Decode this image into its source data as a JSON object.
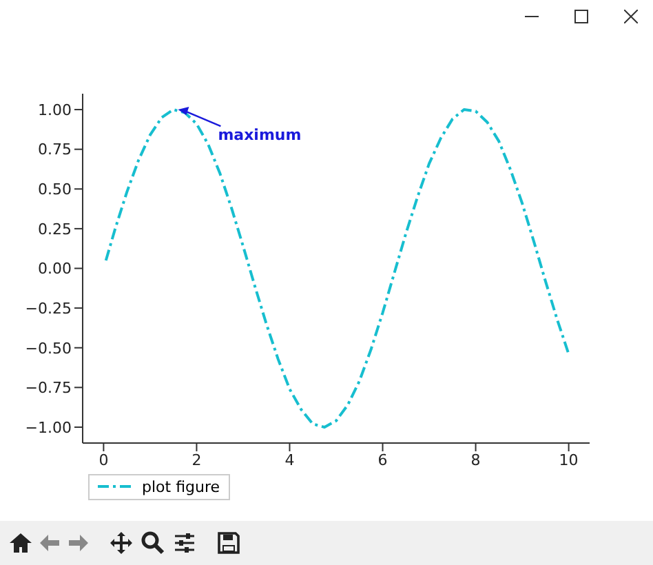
{
  "chart_data": {
    "type": "line",
    "x": [
      0.05,
      0.25,
      0.5,
      0.75,
      1.0,
      1.25,
      1.5,
      1.75,
      2.0,
      2.25,
      2.5,
      2.75,
      3.0,
      3.25,
      3.5,
      3.75,
      4.0,
      4.25,
      4.5,
      4.75,
      5.0,
      5.25,
      5.5,
      5.75,
      6.0,
      6.25,
      6.5,
      6.75,
      7.0,
      7.25,
      7.5,
      7.75,
      8.0,
      8.25,
      8.5,
      8.75,
      9.0,
      9.25,
      9.5,
      9.75,
      10.0
    ],
    "series": [
      {
        "name": "plot figure",
        "color": "#17becf",
        "values": [
          0.05,
          0.25,
          0.48,
          0.68,
          0.84,
          0.95,
          1.0,
          0.98,
          0.91,
          0.78,
          0.6,
          0.38,
          0.14,
          -0.11,
          -0.35,
          -0.57,
          -0.76,
          -0.89,
          -0.98,
          -1.0,
          -0.96,
          -0.86,
          -0.71,
          -0.51,
          -0.28,
          -0.03,
          0.22,
          0.45,
          0.66,
          0.82,
          0.94,
          1.0,
          0.99,
          0.92,
          0.8,
          0.62,
          0.41,
          0.17,
          -0.08,
          -0.32,
          -0.54
        ]
      }
    ],
    "xlim": [
      -0.45,
      10.45
    ],
    "xticks": [
      0,
      2,
      4,
      6,
      8,
      10
    ],
    "ylim": [
      -1.1,
      1.1
    ],
    "yticks": [
      {
        "value": -1,
        "label": "−1.00"
      },
      {
        "value": -0.75,
        "label": "−0.75"
      },
      {
        "value": -0.5,
        "label": "−0.50"
      },
      {
        "value": -0.25,
        "label": "−0.25"
      },
      {
        "value": 0,
        "label": "0.00"
      },
      {
        "value": 0.25,
        "label": "0.25"
      },
      {
        "value": 0.5,
        "label": "0.50"
      },
      {
        "value": 0.75,
        "label": "0.75"
      },
      {
        "value": 1,
        "label": "1.00"
      }
    ],
    "annotations": [
      {
        "text": "maximum",
        "x": 1.57,
        "y": 1
      }
    ],
    "legend": "bottom left",
    "line_style": "dashed",
    "marker": "none",
    "grid": false
  }
}
